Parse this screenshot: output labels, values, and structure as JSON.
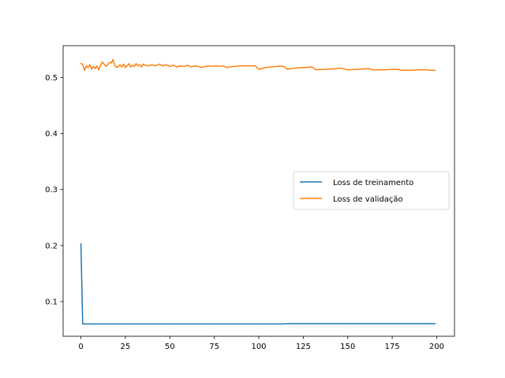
{
  "chart_data": {
    "type": "line",
    "title": "",
    "xlabel": "",
    "ylabel": "",
    "xlim": [
      -10,
      210
    ],
    "ylim": [
      0.038,
      0.557
    ],
    "x_ticks": [
      0,
      25,
      50,
      75,
      100,
      125,
      150,
      175,
      200
    ],
    "y_ticks": [
      0.1,
      0.2,
      0.3,
      0.4,
      0.5
    ],
    "grid": false,
    "legend_position": "center-right",
    "series": [
      {
        "name": "Loss de treinamento",
        "color": "#1f77b4",
        "x": [
          0,
          1,
          2,
          5,
          10,
          20,
          40,
          60,
          80,
          100,
          114,
          116,
          130,
          132,
          150,
          160,
          175,
          190,
          199
        ],
        "y": [
          0.203,
          0.06,
          0.06,
          0.06,
          0.06,
          0.06,
          0.06,
          0.06,
          0.06,
          0.06,
          0.06,
          0.0605,
          0.0605,
          0.0605,
          0.0605,
          0.0605,
          0.0605,
          0.0605,
          0.0605
        ]
      },
      {
        "name": "Loss de validação",
        "color": "#ff7f0e",
        "x": [
          0,
          1,
          2,
          3,
          4,
          5,
          6,
          7,
          8,
          9,
          10,
          11,
          12,
          13,
          14,
          15,
          16,
          17,
          18,
          19,
          20,
          21,
          22,
          23,
          24,
          25,
          26,
          27,
          28,
          29,
          30,
          31,
          32,
          33,
          34,
          35,
          36,
          38,
          40,
          42,
          44,
          46,
          48,
          50,
          52,
          54,
          56,
          58,
          60,
          62,
          64,
          66,
          68,
          70,
          72,
          74,
          76,
          78,
          80,
          82,
          84,
          86,
          90,
          94,
          98,
          100,
          104,
          110,
          114,
          116,
          120,
          126,
          130,
          132,
          138,
          144,
          146,
          150,
          156,
          162,
          164,
          170,
          178,
          180,
          186,
          190,
          194,
          196,
          199
        ],
        "y": [
          0.525,
          0.524,
          0.513,
          0.521,
          0.518,
          0.523,
          0.515,
          0.52,
          0.516,
          0.521,
          0.514,
          0.522,
          0.528,
          0.524,
          0.52,
          0.523,
          0.527,
          0.526,
          0.532,
          0.522,
          0.518,
          0.52,
          0.523,
          0.519,
          0.524,
          0.518,
          0.521,
          0.525,
          0.519,
          0.522,
          0.52,
          0.525,
          0.521,
          0.523,
          0.519,
          0.524,
          0.522,
          0.521,
          0.523,
          0.521,
          0.524,
          0.521,
          0.523,
          0.52,
          0.522,
          0.519,
          0.521,
          0.52,
          0.522,
          0.519,
          0.521,
          0.52,
          0.518,
          0.52,
          0.521,
          0.52,
          0.521,
          0.52,
          0.521,
          0.518,
          0.519,
          0.52,
          0.521,
          0.521,
          0.521,
          0.515,
          0.518,
          0.52,
          0.52,
          0.515,
          0.517,
          0.518,
          0.519,
          0.514,
          0.515,
          0.516,
          0.517,
          0.514,
          0.515,
          0.516,
          0.514,
          0.514,
          0.515,
          0.513,
          0.513,
          0.514,
          0.514,
          0.513,
          0.513
        ]
      }
    ]
  }
}
